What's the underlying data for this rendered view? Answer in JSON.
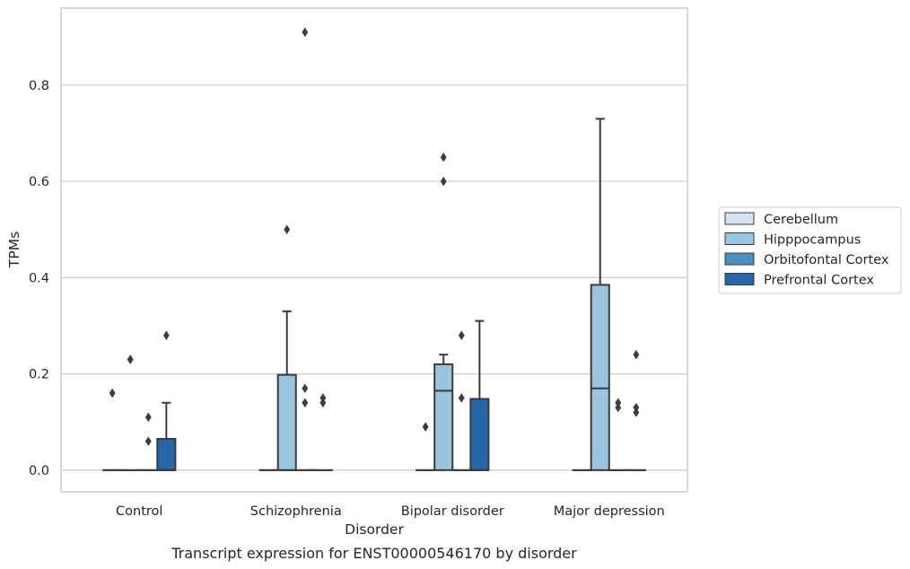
{
  "caption": "Transcript expression for ENST00000546170 by disorder",
  "chart_data": {
    "type": "box",
    "xlabel": "Disorder",
    "ylabel": "TPMs",
    "categories": [
      "Control",
      "Schizophrenia",
      "Bipolar disorder",
      "Major depression"
    ],
    "hue_order": [
      "Cerebellum",
      "Hipppocampus",
      "Orbitofontal Cortex",
      "Prefrontal Cortex"
    ],
    "colors": [
      "#d4e4f2",
      "#9ac5de",
      "#4a90c0",
      "#2567a8"
    ],
    "ylim": [
      -0.045,
      0.96
    ],
    "yticks": [
      "0.0",
      "0.2",
      "0.4",
      "0.6",
      "0.8"
    ],
    "grid": "horizontal",
    "legend_position": "center-right, outside plot",
    "boxes": [
      {
        "category": "Control",
        "hue": "Cerebellum",
        "q1": 0.0,
        "median": 0.0,
        "q3": 0.0,
        "whislo": 0.0,
        "whishi": 0.0,
        "fliers": [
          0.16
        ]
      },
      {
        "category": "Control",
        "hue": "Hipppocampus",
        "q1": 0.0,
        "median": 0.0,
        "q3": 0.0,
        "whislo": 0.0,
        "whishi": 0.0,
        "fliers": [
          0.23,
          0.23
        ]
      },
      {
        "category": "Control",
        "hue": "Orbitofontal Cortex",
        "q1": 0.0,
        "median": 0.0,
        "q3": 0.0,
        "whislo": 0.0,
        "whishi": 0.0,
        "fliers": [
          0.11,
          0.06
        ]
      },
      {
        "category": "Control",
        "hue": "Prefrontal Cortex",
        "q1": 0.0,
        "median": 0.0,
        "q3": 0.065,
        "whislo": 0.0,
        "whishi": 0.14,
        "fliers": [
          0.28
        ]
      },
      {
        "category": "Schizophrenia",
        "hue": "Cerebellum",
        "q1": 0.0,
        "median": 0.0,
        "q3": 0.0,
        "whislo": 0.0,
        "whishi": 0.0,
        "fliers": []
      },
      {
        "category": "Schizophrenia",
        "hue": "Hipppocampus",
        "q1": 0.0,
        "median": 0.0,
        "q3": 0.198,
        "whislo": 0.0,
        "whishi": 0.33,
        "fliers": [
          0.5
        ]
      },
      {
        "category": "Schizophrenia",
        "hue": "Orbitofontal Cortex",
        "q1": 0.0,
        "median": 0.0,
        "q3": 0.0,
        "whislo": 0.0,
        "whishi": 0.0,
        "fliers": [
          0.91,
          0.17,
          0.14
        ]
      },
      {
        "category": "Schizophrenia",
        "hue": "Prefrontal Cortex",
        "q1": 0.0,
        "median": 0.0,
        "q3": 0.0,
        "whislo": 0.0,
        "whishi": 0.0,
        "fliers": [
          0.15,
          0.14
        ]
      },
      {
        "category": "Bipolar disorder",
        "hue": "Cerebellum",
        "q1": 0.0,
        "median": 0.0,
        "q3": 0.0,
        "whislo": 0.0,
        "whishi": 0.0,
        "fliers": [
          0.09
        ]
      },
      {
        "category": "Bipolar disorder",
        "hue": "Hipppocampus",
        "q1": 0.0,
        "median": 0.165,
        "q3": 0.22,
        "whislo": 0.0,
        "whishi": 0.24,
        "fliers": [
          0.65,
          0.6
        ]
      },
      {
        "category": "Bipolar disorder",
        "hue": "Orbitofontal Cortex",
        "q1": 0.0,
        "median": 0.0,
        "q3": 0.0,
        "whislo": 0.0,
        "whishi": 0.0,
        "fliers": [
          0.28,
          0.15
        ]
      },
      {
        "category": "Bipolar disorder",
        "hue": "Prefrontal Cortex",
        "q1": 0.0,
        "median": 0.0,
        "q3": 0.148,
        "whislo": 0.0,
        "whishi": 0.31,
        "fliers": []
      },
      {
        "category": "Major depression",
        "hue": "Cerebellum",
        "q1": 0.0,
        "median": 0.0,
        "q3": 0.0,
        "whislo": 0.0,
        "whishi": 0.0,
        "fliers": []
      },
      {
        "category": "Major depression",
        "hue": "Hipppocampus",
        "q1": 0.0,
        "median": 0.17,
        "q3": 0.385,
        "whislo": 0.0,
        "whishi": 0.73,
        "fliers": []
      },
      {
        "category": "Major depression",
        "hue": "Orbitofontal Cortex",
        "q1": 0.0,
        "median": 0.0,
        "q3": 0.0,
        "whislo": 0.0,
        "whishi": 0.0,
        "fliers": [
          0.14,
          0.13
        ]
      },
      {
        "category": "Major depression",
        "hue": "Prefrontal Cortex",
        "q1": 0.0,
        "median": 0.0,
        "q3": 0.0,
        "whislo": 0.0,
        "whishi": 0.0,
        "fliers": [
          0.24,
          0.13,
          0.12
        ]
      }
    ]
  }
}
